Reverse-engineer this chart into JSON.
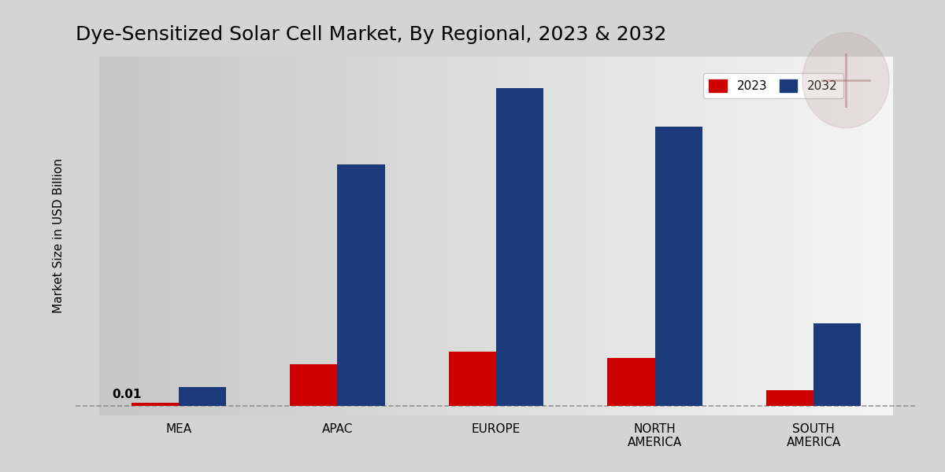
{
  "title": "Dye-Sensitized Solar Cell Market, By Regional, 2023 & 2032",
  "ylabel": "Market Size in USD Billion",
  "categories": [
    "MEA",
    "APAC",
    "EUROPE",
    "NORTH\nAMERICA",
    "SOUTH\nAMERICA"
  ],
  "values_2023": [
    0.005,
    0.065,
    0.085,
    0.075,
    0.025
  ],
  "values_2032": [
    0.03,
    0.38,
    0.5,
    0.44,
    0.13
  ],
  "color_2023": "#cc0000",
  "color_2032": "#1a3a7a",
  "annotation_text": "0.01",
  "bar_width": 0.3,
  "legend_labels": [
    "2023",
    "2032"
  ],
  "title_fontsize": 18,
  "label_fontsize": 11,
  "tick_fontsize": 11,
  "ylim": [
    -0.015,
    0.55
  ]
}
